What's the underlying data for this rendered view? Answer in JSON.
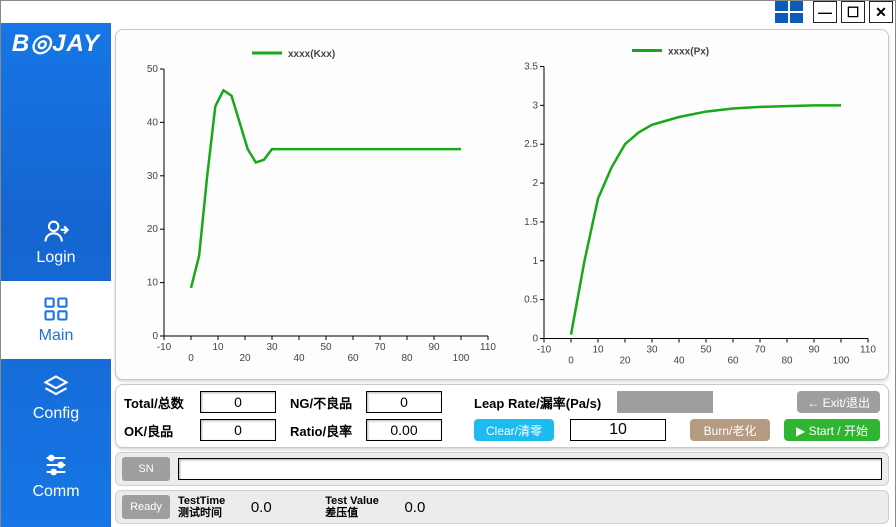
{
  "brand": "B◎JAY",
  "window": {
    "minimize_tip": "Minimize",
    "maximize_tip": "Maximize",
    "close_tip": "Close"
  },
  "nav": {
    "login": {
      "label": "Login"
    },
    "main": {
      "label": "Main"
    },
    "config": {
      "label": "Config"
    },
    "comm": {
      "label": "Comm"
    },
    "active": "main"
  },
  "chart_left": {
    "type": "line",
    "legend": "xxxx(Kxx)",
    "xlim": [
      -10,
      110
    ],
    "xtick_step": 10,
    "ylim": [
      0,
      50
    ],
    "ytick_step": 10,
    "xticks": [
      -10,
      0,
      10,
      20,
      30,
      40,
      50,
      60,
      70,
      80,
      90,
      100,
      110
    ],
    "yticks": [
      0,
      10,
      20,
      30,
      40,
      50
    ],
    "line_color": "#18a818",
    "line_width": 2.5,
    "background_color": "#ffffff",
    "axis_color": "#000000",
    "points": [
      [
        0,
        9
      ],
      [
        3,
        15
      ],
      [
        6,
        30
      ],
      [
        9,
        43
      ],
      [
        12,
        46
      ],
      [
        15,
        45
      ],
      [
        18,
        40
      ],
      [
        21,
        35
      ],
      [
        24,
        32.5
      ],
      [
        27,
        33
      ],
      [
        30,
        35
      ],
      [
        40,
        35
      ],
      [
        60,
        35
      ],
      [
        80,
        35
      ],
      [
        100,
        35
      ]
    ]
  },
  "chart_right": {
    "type": "line",
    "legend": "xxxx(Px)",
    "xlim": [
      -10,
      110
    ],
    "xtick_step": 10,
    "ylim": [
      0,
      3.5
    ],
    "ytick_step": 0.5,
    "xticks": [
      -10,
      0,
      10,
      20,
      30,
      40,
      50,
      60,
      70,
      80,
      90,
      100,
      110
    ],
    "yticks": [
      0,
      0.5,
      1,
      1.5,
      2,
      2.5,
      3,
      3.5
    ],
    "line_color": "#18a818",
    "line_width": 2.5,
    "background_color": "#ffffff",
    "axis_color": "#000000",
    "points": [
      [
        0,
        0.05
      ],
      [
        5,
        1.0
      ],
      [
        10,
        1.8
      ],
      [
        15,
        2.2
      ],
      [
        20,
        2.5
      ],
      [
        25,
        2.65
      ],
      [
        30,
        2.75
      ],
      [
        40,
        2.85
      ],
      [
        50,
        2.92
      ],
      [
        60,
        2.96
      ],
      [
        70,
        2.98
      ],
      [
        80,
        2.99
      ],
      [
        90,
        3.0
      ],
      [
        100,
        3.0
      ]
    ]
  },
  "stats": {
    "total_label": "Total/总数",
    "total_value": "0",
    "ng_label": "NG/不良品",
    "ng_value": "0",
    "leaprate_label": "Leap Rate/漏率(Pa/s)",
    "ok_label": "OK/良品",
    "ok_value": "0",
    "ratio_label": "Ratio/良率",
    "ratio_value": "0.00",
    "countdown_value": "10"
  },
  "buttons": {
    "exit": {
      "label": "← Exit/退出",
      "bg": "#9e9e9e"
    },
    "clear": {
      "label": "Clear/清零",
      "bg": "#1dbcf0"
    },
    "burn": {
      "label": "Burn/老化",
      "bg": "#b49b82"
    },
    "start": {
      "label": "▶ Start / 开始",
      "bg": "#2fb52f"
    }
  },
  "bottom": {
    "sn_label": "SN",
    "ready_label": "Ready",
    "testtime_label_en": "TestTime",
    "testtime_label_cn": "测试时间",
    "testtime_value": "0.0",
    "testvalue_label_en": "Test Value",
    "testvalue_label_cn": "差压值",
    "testvalue_value": "0.0"
  }
}
